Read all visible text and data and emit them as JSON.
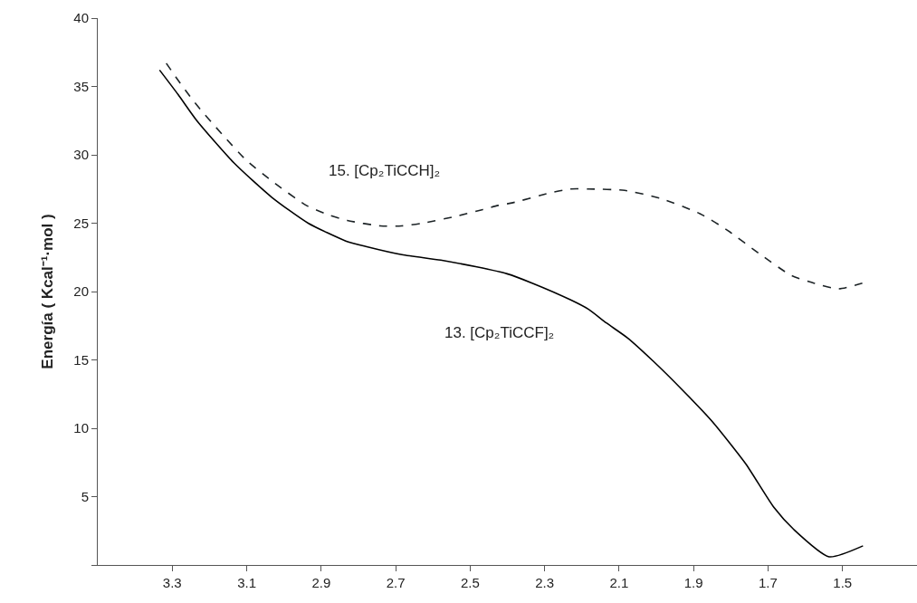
{
  "chart_data": {
    "type": "line",
    "ylabel": "Energía ( Kcal⁻¹·mol )",
    "xlim": [
      3.5,
      1.3
    ],
    "xticks": [
      3.3,
      3.1,
      2.9,
      2.7,
      2.5,
      2.3,
      2.1,
      1.9,
      1.7,
      1.5
    ],
    "ylim": [
      0,
      40
    ],
    "yticks": [
      {
        "value": 0,
        "label": null
      },
      5,
      10,
      15,
      20,
      25,
      30,
      35,
      40
    ],
    "grid": false,
    "marker": "none",
    "series": [
      {
        "color": "#000000",
        "line_style": "solid",
        "x": [
          3.334,
          3.284,
          3.234,
          3.134,
          3.033,
          2.935,
          2.834,
          2.78,
          2.683,
          2.579,
          2.482,
          2.401,
          2.332,
          2.231,
          2.182,
          2.134,
          2.077,
          2.008,
          1.93,
          1.85,
          1.76,
          1.684,
          1.631,
          1.536,
          1.445
        ],
        "values": [
          36.2,
          34.4,
          32.5,
          29.4,
          26.9,
          25.0,
          23.7,
          23.3,
          22.7,
          22.3,
          21.8,
          21.3,
          20.6,
          19.4,
          18.7,
          17.7,
          16.6,
          14.9,
          12.8,
          10.5,
          7.4,
          4.2,
          2.6,
          0.6,
          1.4
        ]
      },
      {
        "color": "#1c2326",
        "line_style": "dashed",
        "x": [
          3.316,
          3.288,
          3.239,
          3.166,
          3.101,
          3.033,
          2.94,
          2.879,
          2.83,
          2.741,
          2.684,
          2.628,
          2.539,
          2.466,
          2.425,
          2.385,
          2.287,
          2.231,
          2.182,
          2.085,
          1.988,
          1.883,
          1.81,
          1.72,
          1.639,
          1.575,
          1.51,
          1.437
        ],
        "values": [
          36.7,
          35.6,
          33.8,
          31.5,
          29.6,
          28.1,
          26.3,
          25.6,
          25.2,
          24.8,
          24.8,
          25.0,
          25.5,
          26.0,
          26.3,
          26.5,
          27.2,
          27.5,
          27.5,
          27.4,
          26.8,
          25.7,
          24.5,
          22.7,
          21.2,
          20.6,
          20.2,
          20.7
        ]
      }
    ],
    "annotations": [
      "15. [Cp₂TiCCH]₂",
      "13. [Cp₂TiCCF]₂"
    ]
  }
}
